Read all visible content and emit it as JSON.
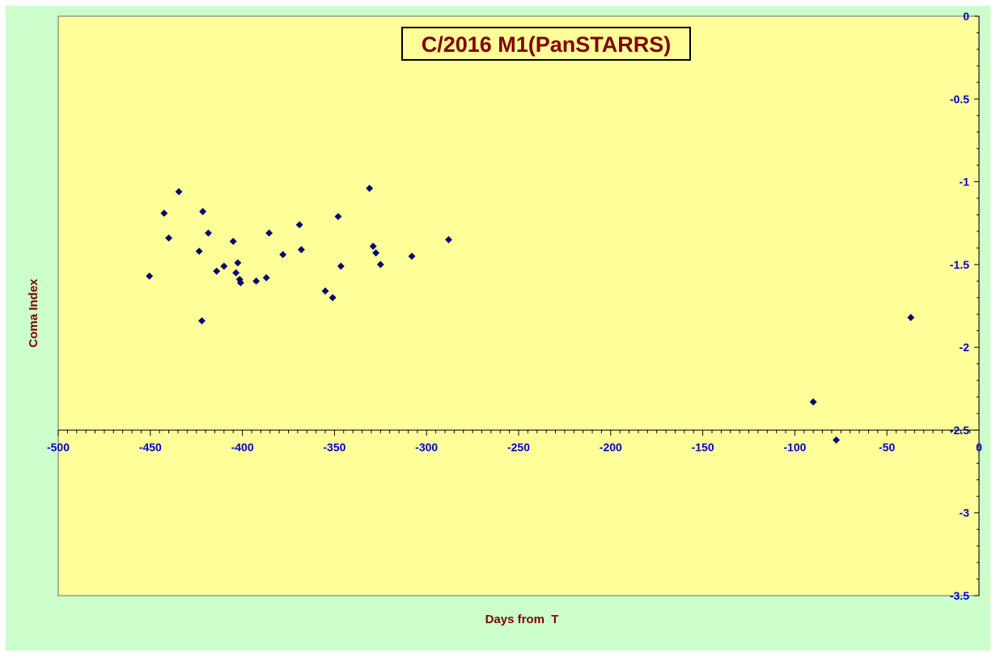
{
  "colors": {
    "outer_background": "#ccffcc",
    "plot_background": "#ffff99",
    "marker": "#000080",
    "tick_label": "#0000cc",
    "title_text": "#800000"
  },
  "chart_data": {
    "type": "scatter",
    "title": "C/2016 M1(PanSTARRS)",
    "xlabel": "Days from  T",
    "ylabel": "Coma Index",
    "xlim": [
      -500,
      0
    ],
    "ylim": [
      -3.5,
      0
    ],
    "x_crosses_y_at": -2.5,
    "x_ticks": [
      -500,
      -450,
      -400,
      -350,
      -300,
      -250,
      -200,
      -150,
      -100,
      -50,
      0
    ],
    "y_ticks": [
      0,
      -0.5,
      -1,
      -1.5,
      -2,
      -2.5,
      -3,
      -3.5
    ],
    "y_tick_labels": [
      "0",
      "-0.5",
      "-1",
      "-1.5",
      "-2",
      "-2.5",
      "-3",
      "-3.5"
    ],
    "y_axis_position": "right",
    "grid": false,
    "legend": "none",
    "marker": "diamond",
    "series": [
      {
        "x": [
          -450.5,
          -442.5,
          -440.0,
          -434.5,
          -423.5,
          -422.0,
          -421.5,
          -418.5,
          -414.0,
          -410.0,
          -405.0,
          -403.5,
          -402.5,
          -401.5,
          -401.0,
          -392.5,
          -387.0,
          -385.5,
          -378.0,
          -369.0,
          -368.0,
          -355.0,
          -351.0,
          -348.0,
          -346.5,
          -331.0,
          -329.0,
          -327.5,
          -325.0,
          -308.0,
          -288.0,
          -90.0,
          -77.5,
          -37.0
        ],
        "y": [
          -1.57,
          -1.19,
          -1.34,
          -1.06,
          -1.42,
          -1.84,
          -1.18,
          -1.31,
          -1.54,
          -1.51,
          -1.36,
          -1.55,
          -1.49,
          -1.59,
          -1.61,
          -1.6,
          -1.58,
          -1.31,
          -1.44,
          -1.26,
          -1.41,
          -1.66,
          -1.7,
          -1.21,
          -1.51,
          -1.04,
          -1.39,
          -1.43,
          -1.5,
          -1.45,
          -1.35,
          -2.33,
          -2.56,
          -1.82
        ]
      }
    ]
  }
}
